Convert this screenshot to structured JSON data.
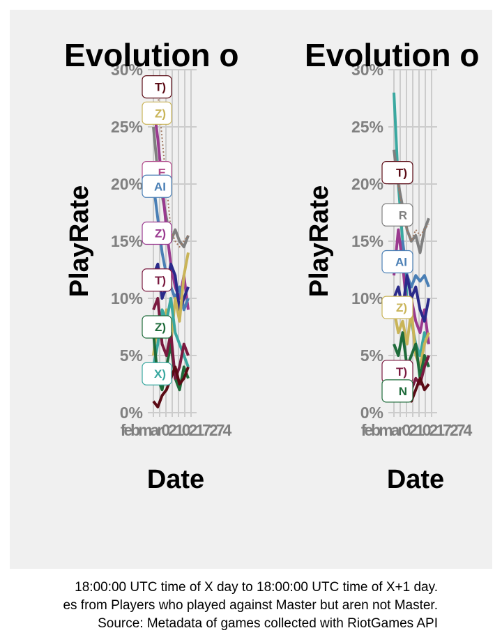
{
  "chart_data": [
    {
      "type": "line",
      "title": "Evolution o",
      "ylabel": "PlayRate",
      "xlabel": "Date",
      "ylim": [
        0,
        30
      ],
      "yticks": [
        "0%",
        "5%",
        "10%",
        "15%",
        "20%",
        "25%",
        "30%"
      ],
      "xticks": [
        "fe",
        "fe",
        "ma",
        "ma",
        "ma",
        "27",
        "4"
      ],
      "xtick_text_overlap": "febmar0210217274",
      "legend_labels": [
        {
          "text": "T)",
          "color": "#5a0a14",
          "value": 28.5
        },
        {
          "text": "Z)",
          "color": "#c9b458",
          "value": 26.2
        },
        {
          "text": "E",
          "color": "#b04a8a",
          "value": 21.0
        },
        {
          "text": "AI",
          "color": "#4a7fb5",
          "value": 19.8
        },
        {
          "text": "Z)",
          "color": "#9a3a8f",
          "value": 15.7
        },
        {
          "text": "T)",
          "color": "#7a1a40",
          "value": 11.6
        },
        {
          "text": "Z)",
          "color": "#1e6b3a",
          "value": 7.5
        },
        {
          "text": "X)",
          "color": "#3aa8a0",
          "value": 3.4
        }
      ],
      "series": [
        {
          "color": "#7f7f7f",
          "values": [
            25,
            21,
            19,
            17,
            15,
            16,
            15,
            14.5,
            15.5
          ]
        },
        {
          "color": "#9a3a8f",
          "values": [
            27,
            24,
            20,
            16,
            13,
            11,
            10,
            12,
            9
          ]
        },
        {
          "color": "#4a7fb5",
          "values": [
            20,
            17,
            14,
            12,
            11,
            10,
            11,
            9,
            10
          ]
        },
        {
          "color": "#2a2a8a",
          "values": [
            12,
            13,
            10,
            11,
            13,
            12,
            9,
            10,
            11
          ]
        },
        {
          "color": "#c9b458",
          "values": [
            5,
            8,
            7,
            9,
            6,
            10,
            8,
            12,
            14
          ]
        },
        {
          "color": "#3aa8a0",
          "values": [
            4,
            6,
            9,
            8,
            10,
            7,
            6,
            5,
            4
          ]
        },
        {
          "color": "#1e6b3a",
          "values": [
            7,
            3,
            2,
            4,
            6,
            3,
            2,
            4,
            3
          ]
        },
        {
          "color": "#7a1a40",
          "values": [
            9,
            10,
            6,
            5,
            7,
            3,
            4,
            6,
            5
          ]
        },
        {
          "color": "#5a0a14",
          "values": [
            1,
            0.5,
            1.5,
            2,
            3,
            4,
            2.5,
            3,
            4
          ]
        },
        {
          "color": "#a07860",
          "dashed": true,
          "values": [
            28.5,
            28,
            24,
            20,
            16,
            15,
            14.5,
            15,
            15.5
          ]
        }
      ]
    },
    {
      "type": "line",
      "title": "Evolution o",
      "ylabel": "PlayRate",
      "xlabel": "Date",
      "ylim": [
        0,
        30
      ],
      "yticks": [
        "0%",
        "5%",
        "10%",
        "15%",
        "20%",
        "25%",
        "30%"
      ],
      "xticks": [
        "fe",
        "fe",
        "ma",
        "ma",
        "ma",
        "27",
        "4"
      ],
      "xtick_text_overlap": "febmar0210217274",
      "legend_labels": [
        {
          "text": "T)",
          "color": "#5a0a14",
          "value": 21.0
        },
        {
          "text": "R",
          "color": "#7f7f7f",
          "value": 17.3
        },
        {
          "text": "AI",
          "color": "#4a7fb5",
          "value": 13.2
        },
        {
          "text": "Z)",
          "color": "#c9b458",
          "value": 9.2
        },
        {
          "text": "T)",
          "color": "#7a1a40",
          "value": 3.6
        },
        {
          "text": "N",
          "color": "#1e6b3a",
          "value": 1.9
        }
      ],
      "series": [
        {
          "color": "#3aa8a0",
          "values": [
            28,
            20,
            15,
            10,
            8,
            6,
            5,
            7,
            6
          ]
        },
        {
          "color": "#7f7f7f",
          "values": [
            23,
            20,
            18,
            16,
            15,
            15.5,
            14,
            16,
            17
          ]
        },
        {
          "color": "#4a7fb5",
          "values": [
            14,
            13,
            15,
            12,
            11,
            12,
            11.5,
            12,
            11
          ]
        },
        {
          "color": "#9a3a8f",
          "values": [
            12,
            16,
            13,
            9,
            10,
            8,
            7,
            9,
            6
          ]
        },
        {
          "color": "#2a2a8a",
          "values": [
            10,
            11,
            9,
            12,
            10,
            11,
            9,
            8,
            10
          ]
        },
        {
          "color": "#c9b458",
          "values": [
            9,
            7,
            8,
            6,
            9,
            5,
            4,
            6,
            7
          ]
        },
        {
          "color": "#1e6b3a",
          "values": [
            6,
            5,
            7,
            4,
            5,
            6,
            3,
            5,
            4
          ]
        },
        {
          "color": "#7a1a40",
          "values": [
            4,
            3,
            2,
            3.5,
            2,
            3,
            2.5,
            4,
            5
          ]
        },
        {
          "color": "#5a0a14",
          "values": [
            1,
            2,
            1.5,
            2.5,
            1,
            2,
            3,
            2,
            2.5
          ]
        },
        {
          "color": "#a07860",
          "dashed": true,
          "values": [
            21,
            20,
            17,
            16,
            15,
            16,
            15.5,
            16,
            16.5
          ]
        }
      ]
    }
  ],
  "captions": [
    "18:00:00 UTC time of X day to 18:00:00 UTC time of X+1 day.",
    "es from Players who played against Master but aren not Master.",
    "Source: Metadata of games collected with RiotGames API"
  ]
}
